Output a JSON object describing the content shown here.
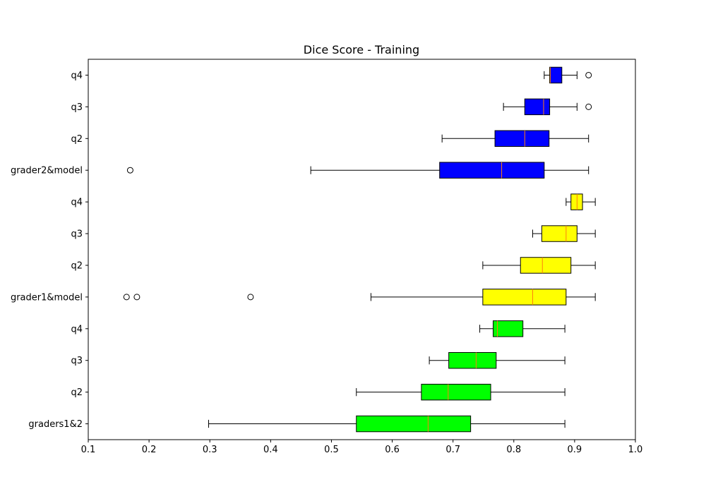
{
  "chart_data": {
    "type": "box",
    "orientation": "horizontal",
    "title": "Dice Score - Training",
    "xlabel": "",
    "ylabel": "",
    "xlim": [
      0.1,
      1.0
    ],
    "xticks": [
      "0.1",
      "0.2",
      "0.3",
      "0.4",
      "0.5",
      "0.6",
      "0.7",
      "0.8",
      "0.9",
      "1.0"
    ],
    "grid": false,
    "median_color": "#ff7f0e",
    "categories": [
      "graders1&2",
      "q2",
      "q3",
      "q4",
      "grader1&model",
      "q2",
      "q3",
      "q4",
      "grader2&model",
      "q2",
      "q3",
      "q4"
    ],
    "boxes": [
      {
        "label": "graders1&2",
        "color": "#00ff00",
        "whislo": 0.298,
        "q1": 0.541,
        "med": 0.659,
        "q3": 0.729,
        "whishi": 0.884,
        "fliers": []
      },
      {
        "label": "q2",
        "color": "#00ff00",
        "whislo": 0.541,
        "q1": 0.648,
        "med": 0.692,
        "q3": 0.762,
        "whishi": 0.884,
        "fliers": []
      },
      {
        "label": "q3",
        "color": "#00ff00",
        "whislo": 0.661,
        "q1": 0.693,
        "med": 0.738,
        "q3": 0.771,
        "whishi": 0.884,
        "fliers": []
      },
      {
        "label": "q4",
        "color": "#00ff00",
        "whislo": 0.744,
        "q1": 0.766,
        "med": 0.773,
        "q3": 0.815,
        "whishi": 0.884,
        "fliers": []
      },
      {
        "label": "grader1&model",
        "color": "#ffff00",
        "whislo": 0.565,
        "q1": 0.749,
        "med": 0.831,
        "q3": 0.886,
        "whishi": 0.934,
        "fliers": [
          0.163,
          0.18,
          0.367
        ]
      },
      {
        "label": "q2",
        "color": "#ffff00",
        "whislo": 0.749,
        "q1": 0.811,
        "med": 0.847,
        "q3": 0.894,
        "whishi": 0.934,
        "fliers": []
      },
      {
        "label": "q3",
        "color": "#ffff00",
        "whislo": 0.831,
        "q1": 0.846,
        "med": 0.886,
        "q3": 0.904,
        "whishi": 0.934,
        "fliers": []
      },
      {
        "label": "q4",
        "color": "#ffff00",
        "whislo": 0.886,
        "q1": 0.894,
        "med": 0.904,
        "q3": 0.913,
        "whishi": 0.934,
        "fliers": []
      },
      {
        "label": "grader2&model",
        "color": "#0000ff",
        "whislo": 0.466,
        "q1": 0.678,
        "med": 0.78,
        "q3": 0.85,
        "whishi": 0.923,
        "fliers": [
          0.169
        ]
      },
      {
        "label": "q2",
        "color": "#0000ff",
        "whislo": 0.682,
        "q1": 0.769,
        "med": 0.818,
        "q3": 0.858,
        "whishi": 0.923,
        "fliers": []
      },
      {
        "label": "q3",
        "color": "#0000ff",
        "whislo": 0.783,
        "q1": 0.818,
        "med": 0.849,
        "q3": 0.859,
        "whishi": 0.904,
        "fliers": [
          0.923
        ]
      },
      {
        "label": "q4",
        "color": "#0000ff",
        "whislo": 0.85,
        "q1": 0.859,
        "med": 0.86,
        "q3": 0.879,
        "whishi": 0.904,
        "fliers": [
          0.923
        ]
      }
    ]
  }
}
